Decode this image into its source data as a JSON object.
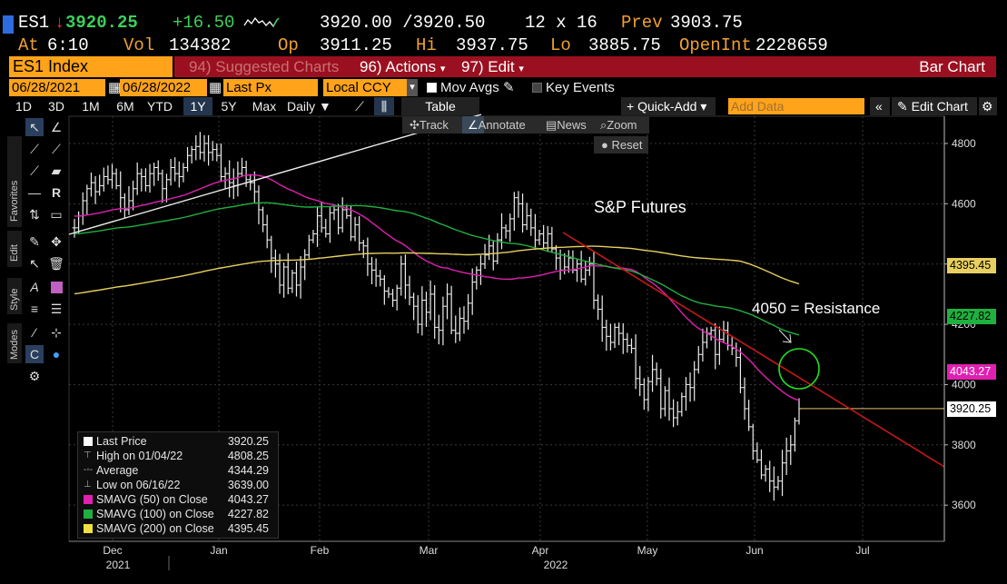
{
  "header": {
    "ticker": "ES1",
    "last": "3920.25",
    "change": "+16.50",
    "bid_ask": "3920.00 /3920.50",
    "size": "12 x 16",
    "prev_label": "Prev",
    "prev": "3903.75",
    "at_label": "At",
    "time": "6:10",
    "vol_label": "Vol",
    "vol": "134382",
    "op_label": "Op",
    "open": "3911.25",
    "hi_label": "Hi",
    "high": "3937.75",
    "lo_label": "Lo",
    "low": "3885.75",
    "oi_label": "OpenInt",
    "open_int": "2228659"
  },
  "toolbar": {
    "security": "ES1 Index",
    "suggested": "94) Suggested Charts",
    "actions": "96) Actions",
    "edit": "97) Edit",
    "chart_type": "Bar Chart",
    "start_date": "06/28/2021",
    "end_date": "06/28/2022",
    "field": "Last Px",
    "currency": "Local CCY",
    "mov_avgs": "Mov Avgs",
    "key_events": "Key Events",
    "periods": [
      "1D",
      "3D",
      "1M",
      "6M",
      "YTD",
      "1Y",
      "5Y",
      "Max"
    ],
    "selected_period": "1Y",
    "frequency": "Daily",
    "table": "Table",
    "quick_add": "+ Quick-Add",
    "add_data_placeholder": "Add Data",
    "edit_chart": "Edit Chart"
  },
  "palette": {
    "tabs": [
      "Favorites",
      "Edit",
      "Style",
      "Modes"
    ]
  },
  "chart_tools": {
    "track": "Track",
    "annotate": "Annotate",
    "news": "News",
    "zoom": "Zoom",
    "reset": "Reset"
  },
  "colors": {
    "sma50": "#e020b0",
    "sma100": "#20b040",
    "sma200": "#e8d060",
    "trend": "#c81818",
    "orange": "#ffa31a"
  },
  "chart_data": {
    "type": "bar",
    "title": "",
    "annotations": [
      "S&P Futures",
      "4050 = Resistance"
    ],
    "y_ticks": [
      3600,
      3800,
      4000,
      4200,
      4400,
      4600,
      4800
    ],
    "y_tick_labels": [
      "3600",
      "3800",
      "4000",
      "4200",
      "4400",
      "4600",
      "4800"
    ],
    "ylim": [
      3480,
      4830
    ],
    "x_months": [
      "Dec",
      "Jan",
      "Feb",
      "Mar",
      "Apr",
      "May",
      "Jun",
      "Jul"
    ],
    "x_years": [
      "2021",
      "2022"
    ],
    "badges": [
      {
        "label": "4395.45",
        "value": 4395.45,
        "color": "#e8d060"
      },
      {
        "label": "4227.82",
        "value": 4227.82,
        "color": "#20b040"
      },
      {
        "label": "4043.27",
        "value": 4043.27,
        "color": "#e020b0"
      },
      {
        "label": "3920.25",
        "value": 3920.25,
        "color": "#ffffff"
      }
    ],
    "legend": [
      {
        "label": "Last Price",
        "value": "3920.25"
      },
      {
        "label": "High on 01/04/22",
        "value": "4808.25"
      },
      {
        "label": "Average",
        "value": "4344.29"
      },
      {
        "label": "Low on 06/16/22",
        "value": "3639.00"
      },
      {
        "label": "SMAVG (50)  on Close",
        "value": "4043.27"
      },
      {
        "label": "SMAVG (100)  on Close",
        "value": "4227.82"
      },
      {
        "label": "SMAVG (200)  on Close",
        "value": "4395.45"
      }
    ],
    "series_close": [
      4520,
      4560,
      4610,
      4650,
      4670,
      4640,
      4660,
      4690,
      4680,
      4700,
      4660,
      4620,
      4580,
      4610,
      4650,
      4700,
      4690,
      4660,
      4700,
      4720,
      4700,
      4650,
      4680,
      4720,
      4700,
      4690,
      4720,
      4760,
      4780,
      4790,
      4770,
      4800,
      4770,
      4780,
      4760,
      4690,
      4700,
      4670,
      4660,
      4700,
      4720,
      4680,
      4670,
      4640,
      4580,
      4530,
      4480,
      4420,
      4400,
      4330,
      4390,
      4320,
      4370,
      4330,
      4390,
      4430,
      4480,
      4500,
      4560,
      4520,
      4500,
      4570,
      4580,
      4520,
      4580,
      4560,
      4490,
      4530,
      4470,
      4460,
      4400,
      4380,
      4360,
      4350,
      4310,
      4300,
      4280,
      4320,
      4400,
      4330,
      4290,
      4260,
      4200,
      4280,
      4240,
      4300,
      4190,
      4180,
      4260,
      4300,
      4180,
      4170,
      4220,
      4210,
      4270,
      4340,
      4380,
      4400,
      4430,
      4460,
      4410,
      4480,
      4520,
      4510,
      4550,
      4620,
      4600,
      4530,
      4560,
      4520,
      4480,
      4500,
      4470,
      4500,
      4450,
      4420,
      4380,
      4390,
      4420,
      4380,
      4400,
      4350,
      4380,
      4400,
      4280,
      4250,
      4190,
      4160,
      4140,
      4190,
      4170,
      4150,
      4130,
      4120,
      4020,
      4000,
      3950,
      4010,
      4050,
      4020,
      3920,
      3980,
      3920,
      3890,
      3910,
      3960,
      4000,
      3990,
      4050,
      4100,
      4140,
      4170,
      4180,
      4100,
      4150,
      4180,
      4130,
      4120,
      4090,
      3990,
      3920,
      3860,
      3780,
      3750,
      3700,
      3720,
      3680,
      3660,
      3680,
      3740,
      3780,
      3800,
      3880,
      3920
    ]
  }
}
